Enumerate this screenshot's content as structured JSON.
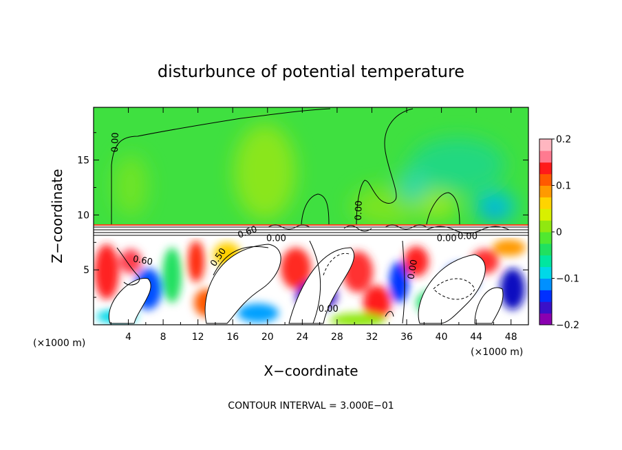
{
  "chart_data": {
    "type": "heatmap",
    "title": "disturbunce of potential temperature",
    "xlabel": "X−coordinate",
    "ylabel": "Z−coordinate",
    "x_unit": "(×1000 m)",
    "x_unit_right": "(×1000 m)",
    "footer": "CONTOUR INTERVAL = 3.000E−01",
    "xlim": [
      0,
      50
    ],
    "ylim": [
      0,
      19.8
    ],
    "x_ticks": [
      4,
      8,
      12,
      16,
      20,
      24,
      28,
      32,
      36,
      40,
      44,
      48
    ],
    "x_tick_labels": [
      "4",
      "8",
      "12",
      "16",
      "20",
      "24",
      "28",
      "32",
      "36",
      "40",
      "44",
      "48"
    ],
    "y_ticks": [
      5,
      10,
      15
    ],
    "y_tick_labels": [
      "5",
      "10",
      "15"
    ],
    "colorbar": {
      "range": [
        -0.2,
        0.2
      ],
      "tick_values": [
        0.2,
        0.1,
        0,
        -0.1,
        -0.2
      ],
      "tick_labels": [
        "0.2",
        "0.1",
        "0",
        "−0.1",
        "−0.2"
      ],
      "colors": [
        "#8a00b0",
        "#3a10c8",
        "#0030ff",
        "#0090ff",
        "#00d8e8",
        "#00e6a0",
        "#20e060",
        "#50e830",
        "#90e810",
        "#d8f000",
        "#ffd400",
        "#ff9a00",
        "#ff5a00",
        "#ff1a1a",
        "#ff7a90",
        "#ffb6c0"
      ]
    },
    "contour_labels": [
      {
        "text": "0.00",
        "x": 2.8,
        "z": 16.6,
        "angle": -88
      },
      {
        "text": "0.00",
        "x": 30.8,
        "z": 10.4,
        "angle": -88
      },
      {
        "text": "0.60",
        "x": 17.8,
        "z": 8.2,
        "angle": -20
      },
      {
        "text": "0.00",
        "x": 21.0,
        "z": 7.6,
        "angle": 0
      },
      {
        "text": "0.50",
        "x": 14.6,
        "z": 6.0,
        "angle": -55
      },
      {
        "text": "0.60",
        "x": 5.6,
        "z": 5.6,
        "angle": 10
      },
      {
        "text": "0.00",
        "x": 37.0,
        "z": 5.0,
        "angle": -80
      },
      {
        "text": "0.00",
        "x": 40.6,
        "z": 7.6,
        "angle": 0
      },
      {
        "text": "0.00",
        "x": 43.0,
        "z": 7.8,
        "angle": 0
      },
      {
        "text": "0.00",
        "x": 27.0,
        "z": 1.2,
        "angle": 0
      }
    ]
  }
}
